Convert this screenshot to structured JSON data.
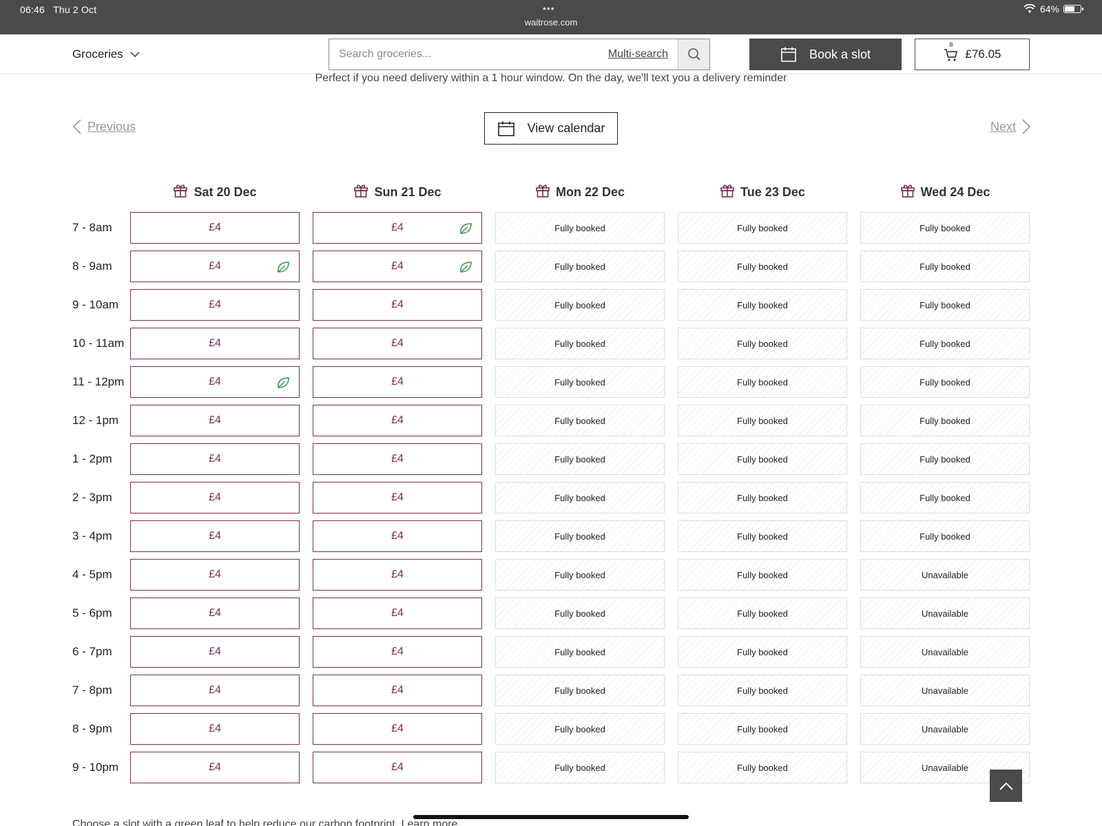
{
  "status_bar": {
    "time": "06:46",
    "date": "Thu 2 Oct",
    "dots": "•••",
    "url": "waitrose.com",
    "battery": "64%",
    "battery_level": 0.64
  },
  "header": {
    "groceries_label": "Groceries",
    "search_placeholder": "Search groceries...",
    "multi_search": "Multi-search",
    "book_slot": "Book a slot",
    "trolley_total": "£76.05",
    "trolley_count": "8"
  },
  "subtitle": "Perfect if you need delivery within a 1 hour window. On the day, we'll text you a delivery reminder",
  "nav": {
    "previous": "Previous",
    "next": "Next",
    "view_calendar": "View calendar"
  },
  "days": [
    "Sat 20 Dec",
    "Sun 21 Dec",
    "Mon 22 Dec",
    "Tue 23 Dec",
    "Wed 24 Dec"
  ],
  "time_slots": [
    "7 - 8am",
    "8 - 9am",
    "9 - 10am",
    "10 - 11am",
    "11 - 12pm",
    "12 - 1pm",
    "1 - 2pm",
    "2 - 3pm",
    "3 - 4pm",
    "4 - 5pm",
    "5 - 6pm",
    "6 - 7pm",
    "7 - 8pm",
    "8 - 9pm",
    "9 - 10pm"
  ],
  "slot_labels": {
    "price": "£4",
    "booked": "Fully booked",
    "unavailable": "Unavailable"
  },
  "slots": [
    [
      "avail",
      "avail-green",
      "booked",
      "booked",
      "booked"
    ],
    [
      "avail-green",
      "avail-green",
      "booked",
      "booked",
      "booked"
    ],
    [
      "avail",
      "avail",
      "booked",
      "booked",
      "booked"
    ],
    [
      "avail",
      "avail",
      "booked",
      "booked",
      "booked"
    ],
    [
      "avail-green",
      "avail",
      "booked",
      "booked",
      "booked"
    ],
    [
      "avail",
      "avail",
      "booked",
      "booked",
      "booked"
    ],
    [
      "avail",
      "avail",
      "booked",
      "booked",
      "booked"
    ],
    [
      "avail",
      "avail",
      "booked",
      "booked",
      "booked"
    ],
    [
      "avail",
      "avail",
      "booked",
      "booked",
      "booked"
    ],
    [
      "avail",
      "avail",
      "booked",
      "booked",
      "unavailable"
    ],
    [
      "avail",
      "avail",
      "booked",
      "booked",
      "unavailable"
    ],
    [
      "avail",
      "avail",
      "booked",
      "booked",
      "unavailable"
    ],
    [
      "avail",
      "avail",
      "booked",
      "booked",
      "unavailable"
    ],
    [
      "avail",
      "avail",
      "booked",
      "booked",
      "unavailable"
    ],
    [
      "avail",
      "avail",
      "booked",
      "booked",
      "unavailable"
    ]
  ],
  "footnote": "Choose a slot with a green leaf to help reduce our carbon footprint.  Learn more",
  "colors": {
    "brand_accent": "#7c2a55",
    "green_leaf": "#3a8f4a",
    "dark_button": "#4a4a4a"
  }
}
